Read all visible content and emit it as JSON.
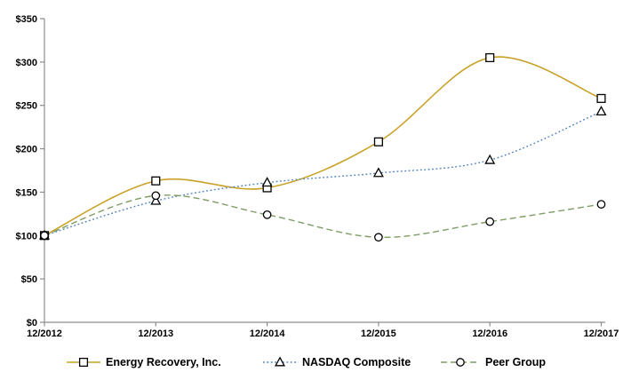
{
  "chart_data": {
    "type": "line",
    "title": "",
    "xlabel": "",
    "ylabel": "",
    "categories": [
      "12/2012",
      "12/2013",
      "12/2014",
      "12/2015",
      "12/2016",
      "12/2017"
    ],
    "y_tick_labels": [
      "$0",
      "$50",
      "$100",
      "$150",
      "$200",
      "$250",
      "$300",
      "$350"
    ],
    "ylim": [
      0,
      350
    ],
    "y_step": 50,
    "grid": false,
    "legend_position": "bottom",
    "axis_color": "#8c8c8c",
    "text_color": "#000000",
    "marker_stroke_color": "#000000",
    "marker_fill_color": "#ffffff",
    "series": [
      {
        "name": "Energy Recovery, Inc.",
        "marker": "square",
        "line": "solid",
        "color": "#C9A227",
        "values": [
          100,
          163,
          155,
          208,
          305,
          258
        ]
      },
      {
        "name": "NASDAQ Composite",
        "marker": "triangle",
        "line": "dotted",
        "color": "#4E81BD",
        "values": [
          100,
          140,
          161,
          172,
          187,
          243
        ]
      },
      {
        "name": "Peer Group",
        "marker": "circle",
        "line": "dashed",
        "color": "#7E9C64",
        "values": [
          100,
          146,
          124,
          98,
          116,
          136
        ]
      }
    ]
  }
}
